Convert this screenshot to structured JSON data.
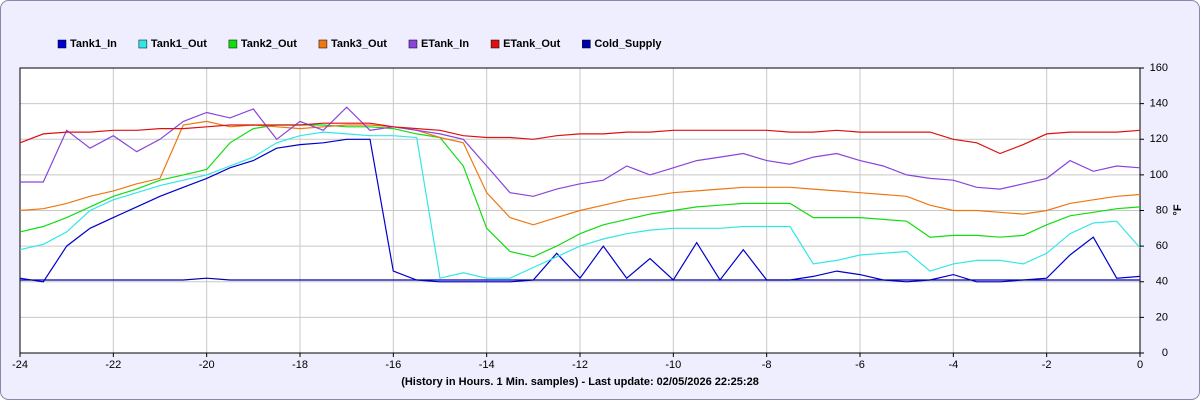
{
  "chart_data": {
    "type": "line",
    "xlabel": "(History in Hours. 1 Min. samples) - Last update: 02/05/2026 22:25:28",
    "ylabel": "°F",
    "x": [
      -24,
      -23.5,
      -23,
      -22.5,
      -22,
      -21.5,
      -21,
      -20.5,
      -20,
      -19.5,
      -19,
      -18.5,
      -18,
      -17.5,
      -17,
      -16.5,
      -16,
      -15.5,
      -15,
      -14.5,
      -14,
      -13.5,
      -13,
      -12.5,
      -12,
      -11.5,
      -11,
      -10.5,
      -10,
      -9.5,
      -9,
      -8.5,
      -8,
      -7.5,
      -7,
      -6.5,
      -6,
      -5.5,
      -5,
      -4.5,
      -4,
      -3.5,
      -3,
      -2.5,
      -2,
      -1.5,
      -1,
      -0.5,
      0
    ],
    "xlim": [
      -24,
      0
    ],
    "xticks": [
      -24,
      -22,
      -20,
      -18,
      -16,
      -14,
      -12,
      -10,
      -8,
      -6,
      -4,
      -2,
      0
    ],
    "ylim": [
      0,
      160
    ],
    "yticks": [
      0,
      20,
      40,
      60,
      80,
      100,
      120,
      140,
      160
    ],
    "grid": true,
    "series": [
      {
        "name": "Tank1_In",
        "color": "#0000cc",
        "values": [
          42,
          40,
          60,
          70,
          76,
          82,
          88,
          93,
          98,
          104,
          108,
          115,
          117,
          118,
          120,
          120,
          46,
          41,
          40,
          40,
          40,
          40,
          41,
          56,
          42,
          60,
          42,
          53,
          41,
          62,
          41,
          58,
          41,
          41,
          43,
          46,
          44,
          41,
          40,
          41,
          44,
          40,
          40,
          41,
          42,
          55,
          65,
          42,
          43
        ]
      },
      {
        "name": "Tank1_Out",
        "color": "#33e6e6",
        "values": [
          58,
          61,
          68,
          80,
          86,
          90,
          94,
          97,
          100,
          105,
          110,
          118,
          122,
          124,
          123,
          122,
          122,
          121,
          42,
          45,
          42,
          42,
          48,
          54,
          60,
          64,
          67,
          69,
          70,
          70,
          70,
          71,
          71,
          71,
          50,
          52,
          55,
          56,
          57,
          46,
          50,
          52,
          52,
          50,
          56,
          67,
          73,
          74,
          59
        ]
      },
      {
        "name": "Tank2_Out",
        "color": "#11dd11",
        "values": [
          68,
          71,
          76,
          82,
          88,
          92,
          97,
          100,
          103,
          118,
          126,
          128,
          128,
          128,
          127,
          127,
          126,
          123,
          121,
          105,
          70,
          57,
          54,
          60,
          67,
          72,
          75,
          78,
          80,
          82,
          83,
          84,
          84,
          84,
          76,
          76,
          76,
          75,
          74,
          65,
          66,
          66,
          65,
          66,
          72,
          77,
          79,
          81,
          82
        ]
      },
      {
        "name": "Tank3_Out",
        "color": "#ee7711",
        "values": [
          80,
          81,
          84,
          88,
          91,
          95,
          98,
          128,
          130,
          127,
          128,
          127,
          126,
          127,
          128,
          128,
          127,
          125,
          121,
          118,
          90,
          76,
          72,
          76,
          80,
          83,
          86,
          88,
          90,
          91,
          92,
          93,
          93,
          93,
          92,
          91,
          90,
          89,
          88,
          83,
          80,
          80,
          79,
          78,
          80,
          84,
          86,
          88,
          89
        ]
      },
      {
        "name": "ETank_In",
        "color": "#8844dd",
        "values": [
          96,
          96,
          125,
          115,
          122,
          113,
          120,
          130,
          135,
          132,
          137,
          120,
          130,
          125,
          138,
          125,
          127,
          125,
          123,
          120,
          105,
          90,
          88,
          92,
          95,
          97,
          105,
          100,
          104,
          108,
          110,
          112,
          108,
          106,
          110,
          112,
          108,
          105,
          100,
          98,
          97,
          93,
          92,
          95,
          98,
          108,
          102,
          105,
          104
        ]
      },
      {
        "name": "ETank_Out",
        "color": "#dd1111",
        "values": [
          118,
          123,
          124,
          124,
          125,
          125,
          126,
          126,
          127,
          128,
          128,
          128,
          128,
          129,
          129,
          129,
          127,
          126,
          125,
          122,
          121,
          121,
          120,
          122,
          123,
          123,
          124,
          124,
          125,
          125,
          125,
          125,
          125,
          124,
          124,
          125,
          124,
          124,
          124,
          124,
          120,
          118,
          112,
          117,
          123,
          124,
          124,
          124,
          125
        ]
      },
      {
        "name": "Cold_Supply",
        "color": "#0000aa",
        "values": [
          41,
          41,
          41,
          41,
          41,
          41,
          41,
          41,
          42,
          41,
          41,
          41,
          41,
          41,
          41,
          41,
          41,
          41,
          41,
          41,
          41,
          41,
          41,
          41,
          41,
          41,
          41,
          41,
          41,
          41,
          41,
          41,
          41,
          41,
          41,
          41,
          41,
          41,
          41,
          41,
          41,
          41,
          41,
          41,
          41,
          41,
          41,
          41,
          41
        ]
      }
    ]
  }
}
